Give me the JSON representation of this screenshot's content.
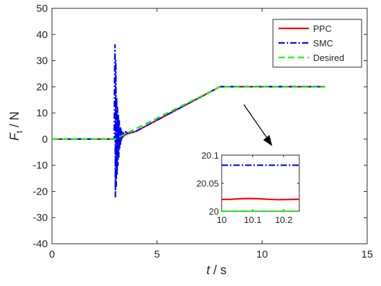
{
  "chart_data": [
    {
      "type": "line",
      "role": "main",
      "xlabel": {
        "var": "t",
        "unit": " / s"
      },
      "ylabel": {
        "var": "F",
        "sub": "t",
        "unit": " / N"
      },
      "xlim": [
        0,
        15
      ],
      "ylim": [
        -40,
        50
      ],
      "xticks": [
        0,
        5,
        10,
        15
      ],
      "yticks": [
        -40,
        -30,
        -20,
        -10,
        0,
        10,
        20,
        30,
        40,
        50
      ],
      "grid": false,
      "legend_position": "top-right",
      "series": [
        {
          "name": "PPC",
          "color": "#ff0000",
          "style": "solid",
          "x": [
            0,
            3.0,
            3.05,
            3.1,
            3.15,
            3.2,
            3.25,
            3.3,
            3.35,
            3.4,
            3.45,
            3.5,
            3.6,
            3.8,
            4.0,
            8.0,
            13.0
          ],
          "y": [
            0,
            0,
            0.8,
            -0.8,
            1.2,
            -0.6,
            1.6,
            0.4,
            1.8,
            1.0,
            2.0,
            1.6,
            2.1,
            2.5,
            3.0,
            20.02,
            20.02
          ]
        },
        {
          "name": "SMC",
          "color": "#0000ff",
          "style": "dashdot",
          "x": [
            0,
            2.96,
            2.98,
            3.0,
            3.02,
            3.04,
            3.06,
            3.08,
            3.1,
            3.12,
            3.14,
            3.16,
            3.18,
            3.2,
            3.22,
            3.24,
            3.26,
            3.28,
            3.3,
            3.32,
            3.35,
            3.4,
            3.45,
            3.5,
            3.6,
            3.8,
            4.0,
            8.0,
            13.0
          ],
          "y": [
            0,
            0,
            22,
            36,
            -22,
            30,
            -18,
            16,
            -14,
            12,
            -10,
            9,
            -7,
            7,
            -4,
            5,
            -2,
            4,
            -1,
            3,
            0.5,
            2.5,
            1.5,
            2.8,
            2.2,
            2.5,
            3.0,
            20.08,
            20.08
          ]
        },
        {
          "name": "Desired",
          "color": "#00ff00",
          "style": "dashed",
          "x": [
            0,
            3.0,
            8.0,
            13.0
          ],
          "y": [
            0,
            0,
            20,
            20
          ]
        }
      ]
    },
    {
      "type": "line",
      "role": "inset",
      "xlim": [
        10,
        10.25
      ],
      "ylim": [
        20,
        20.1
      ],
      "xticks": [
        10,
        10.1,
        10.2
      ],
      "xtick_labels": [
        "10",
        "10.1",
        "10.2"
      ],
      "yticks": [
        20,
        20.05,
        20.1
      ],
      "ytick_labels": [
        "20",
        "20.05",
        "20.1"
      ],
      "series": [
        {
          "name": "PPC",
          "color": "#ff0000",
          "style": "solid",
          "x": [
            10,
            10.03,
            10.06,
            10.09,
            10.12,
            10.15,
            10.18,
            10.21,
            10.25
          ],
          "y": [
            20.021,
            20.0212,
            20.0222,
            20.0227,
            20.0222,
            20.0212,
            20.0206,
            20.0208,
            20.0213
          ]
        },
        {
          "name": "SMC",
          "color": "#0000ff",
          "style": "dashdot",
          "x": [
            10,
            10.25
          ],
          "y": [
            20.082,
            20.082
          ]
        },
        {
          "name": "Desired",
          "color": "#00ff00",
          "style": "dashed",
          "x": [
            10,
            10.25
          ],
          "y": [
            20.0,
            20.0
          ]
        }
      ]
    }
  ]
}
